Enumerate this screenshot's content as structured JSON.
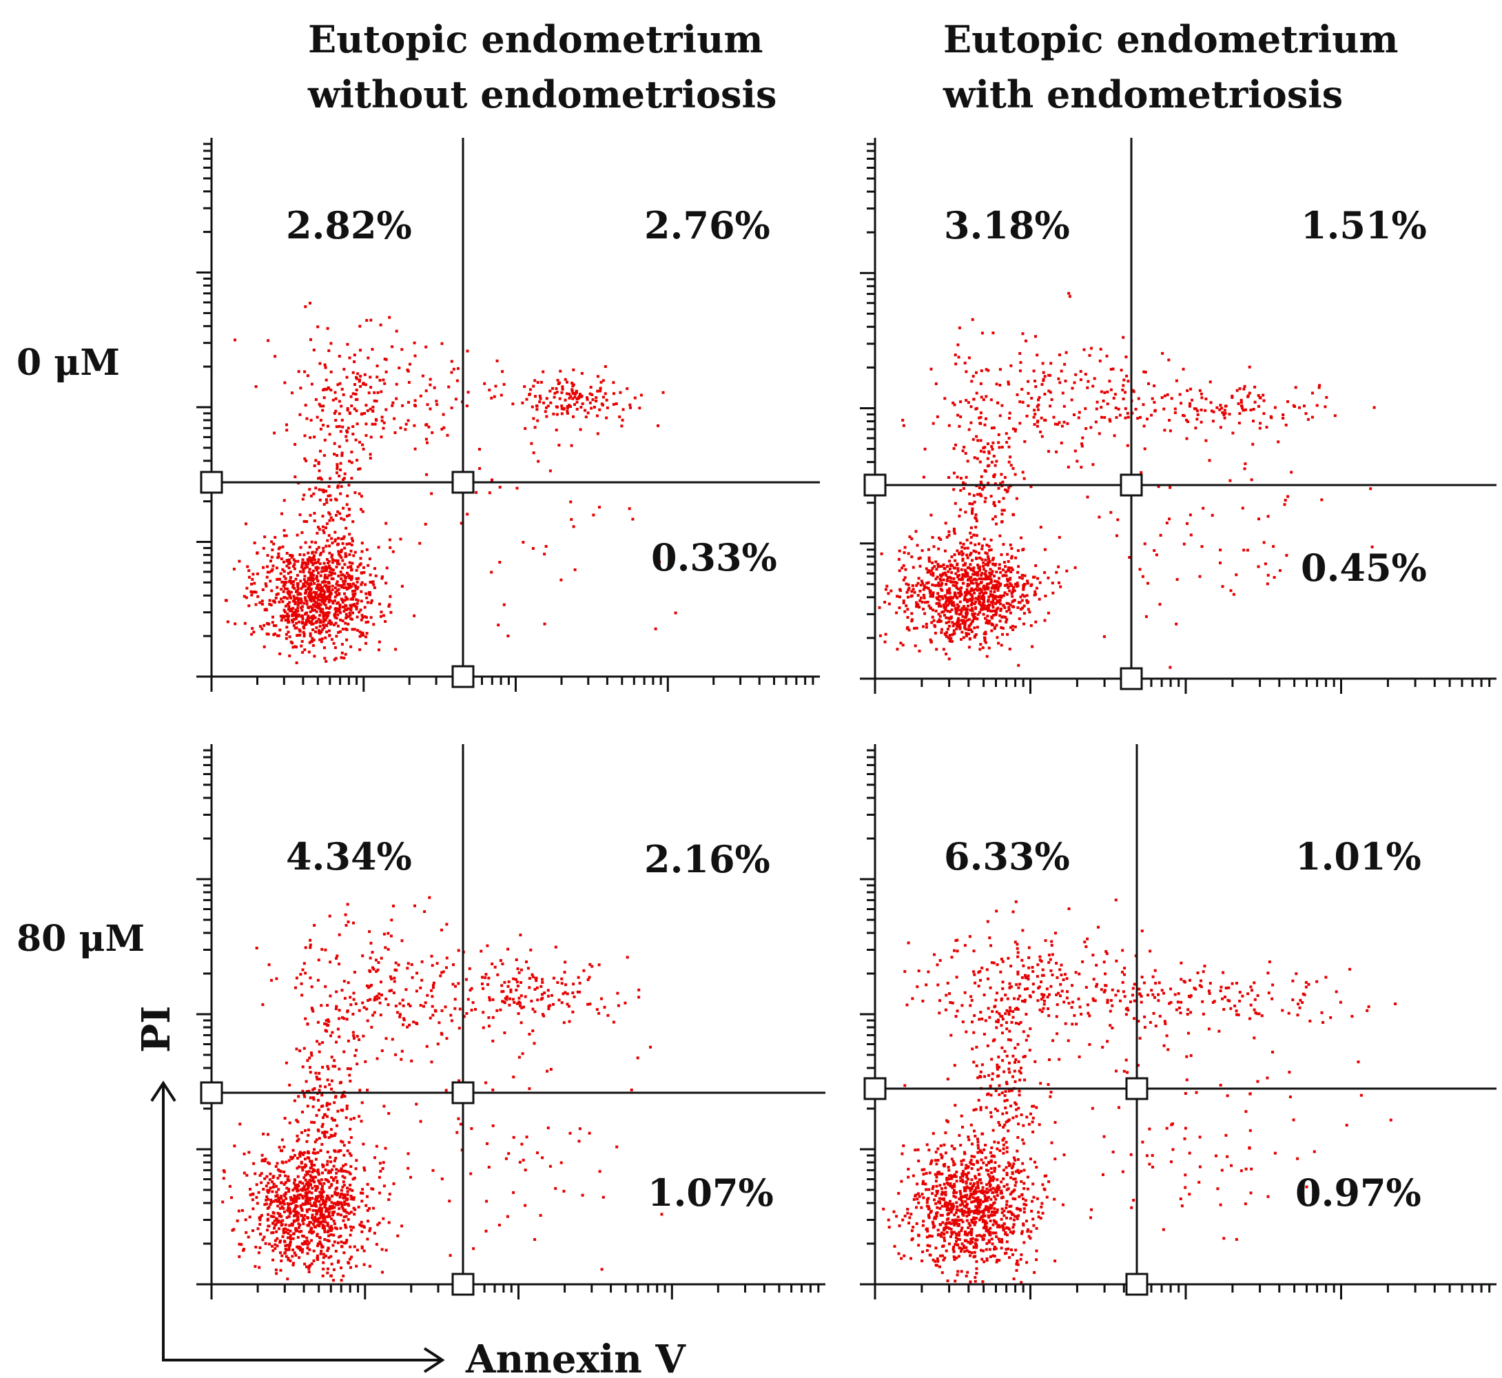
{
  "figure": {
    "column_titles": [
      {
        "line1": "Eutopic endometrium",
        "line2": "without endometriosis"
      },
      {
        "line1": "Eutopic endometrium",
        "line2": "with endometriosis"
      }
    ],
    "row_labels": [
      "0 μM",
      "80 μM"
    ],
    "x_axis_label": "Annexin V",
    "y_axis_label": "PI",
    "dot_color": "#e60000"
  },
  "chart_data": [
    {
      "type": "scatter",
      "group": "Eutopic endometrium without endometriosis",
      "condition": "0 μM",
      "xlabel": "Annexin V",
      "ylabel": "PI",
      "quadrants": {
        "upper_left": "2.82%",
        "upper_right": "2.76%",
        "lower_right": "0.33%"
      }
    },
    {
      "type": "scatter",
      "group": "Eutopic endometrium with endometriosis",
      "condition": "0 μM",
      "xlabel": "Annexin V",
      "ylabel": "PI",
      "quadrants": {
        "upper_left": "3.18%",
        "upper_right": "1.51%",
        "lower_right": "0.45%"
      }
    },
    {
      "type": "scatter",
      "group": "Eutopic endometrium without endometriosis",
      "condition": "80 μM",
      "xlabel": "Annexin V",
      "ylabel": "PI",
      "quadrants": {
        "upper_left": "4.34%",
        "upper_right": "2.16%",
        "lower_right": "1.07%"
      }
    },
    {
      "type": "scatter",
      "group": "Eutopic endometrium with endometriosis",
      "condition": "80 μM",
      "xlabel": "Annexin V",
      "ylabel": "PI",
      "quadrants": {
        "upper_left": "6.33%",
        "upper_right": "1.01%",
        "lower_right": "0.97%"
      }
    }
  ]
}
